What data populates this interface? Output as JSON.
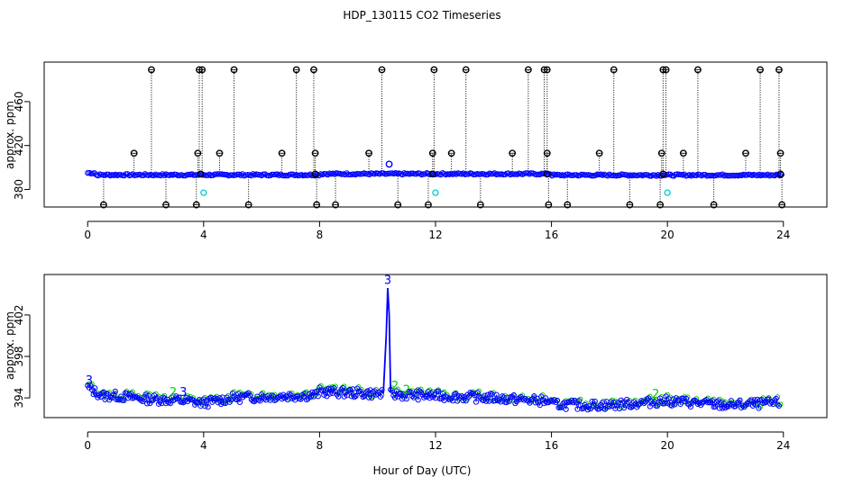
{
  "title": "HDP_130115  CO2 Timeseries",
  "xlabel": "Hour of Day (UTC)",
  "colors": {
    "black": "#000000",
    "blue": "#0000ff",
    "green": "#00cc00",
    "cyan": "#00cccc"
  },
  "chart_data": [
    {
      "type": "scatter",
      "panel": "top",
      "ylabel": "approx. ppm",
      "xlim": [
        -1.5,
        25.5
      ],
      "ylim": [
        364,
        496
      ],
      "xticks": [
        "0",
        "4",
        "8",
        "12",
        "16",
        "20",
        "24"
      ],
      "yticks": [
        "380",
        "420",
        "460"
      ],
      "xtick_values": [
        0,
        4,
        8,
        12,
        16,
        20,
        24
      ],
      "ytick_values": [
        380,
        420,
        460
      ],
      "series": [
        {
          "color": "black",
          "spikes_high": [
            2.2,
            3.85,
            3.95,
            5.05,
            7.2,
            7.8,
            10.15,
            11.95,
            13.05,
            15.2,
            15.75,
            15.85,
            18.15,
            19.85,
            19.95,
            21.05,
            23.2,
            23.85
          ],
          "high_value": 489,
          "spikes_mid": [
            1.6,
            3.8,
            4.55,
            6.7,
            7.85,
            9.7,
            11.9,
            12.55,
            14.65,
            15.85,
            17.65,
            19.8,
            20.55,
            22.7,
            23.9
          ],
          "mid_value": 413,
          "spikes_low": [
            0.55,
            2.7,
            3.75,
            5.55,
            7.9,
            8.55,
            10.7,
            11.75,
            13.55,
            15.9,
            16.55,
            18.7,
            19.75,
            21.6,
            23.95
          ],
          "low_value": 366,
          "near_base": [
            3.9,
            7.85,
            11.9,
            15.85,
            19.85,
            23.9
          ],
          "near_base_value": 394
        },
        {
          "color": "blue",
          "note_points": [
            {
              "x": 10.4,
              "y": 403
            }
          ]
        },
        {
          "color": "cyan",
          "points": [
            {
              "x": 4.0,
              "y": 377
            },
            {
              "x": 12.0,
              "y": 377
            },
            {
              "x": 20.0,
              "y": 377
            }
          ]
        }
      ]
    },
    {
      "type": "line",
      "panel": "bottom",
      "ylabel": "approx. ppm",
      "xlim": [
        -1.5,
        25.5
      ],
      "ylim": [
        392.1,
        405.9
      ],
      "xticks": [
        "0",
        "4",
        "8",
        "12",
        "16",
        "20",
        "24"
      ],
      "yticks": [
        "394",
        "398",
        "402"
      ],
      "xtick_values": [
        0,
        4,
        8,
        12,
        16,
        20,
        24
      ],
      "ytick_values": [
        394,
        398,
        402
      ],
      "baseline": [
        {
          "x": 0.0,
          "y": 395.0
        },
        {
          "x": 0.5,
          "y": 394.2
        },
        {
          "x": 1.0,
          "y": 394.2
        },
        {
          "x": 2.0,
          "y": 393.9
        },
        {
          "x": 3.0,
          "y": 393.8
        },
        {
          "x": 3.75,
          "y": 393.6
        },
        {
          "x": 4.0,
          "y": 393.5
        },
        {
          "x": 5.0,
          "y": 394.0
        },
        {
          "x": 6.0,
          "y": 394.1
        },
        {
          "x": 7.0,
          "y": 394.2
        },
        {
          "x": 7.9,
          "y": 394.3
        },
        {
          "x": 8.0,
          "y": 394.6
        },
        {
          "x": 9.0,
          "y": 394.5
        },
        {
          "x": 10.0,
          "y": 394.4
        },
        {
          "x": 11.0,
          "y": 394.3
        },
        {
          "x": 11.95,
          "y": 394.2
        },
        {
          "x": 12.0,
          "y": 394.2
        },
        {
          "x": 13.0,
          "y": 394.1
        },
        {
          "x": 14.0,
          "y": 394.0
        },
        {
          "x": 15.0,
          "y": 393.8
        },
        {
          "x": 15.9,
          "y": 393.7
        },
        {
          "x": 16.0,
          "y": 393.4
        },
        {
          "x": 17.0,
          "y": 393.3
        },
        {
          "x": 18.0,
          "y": 393.3
        },
        {
          "x": 19.0,
          "y": 393.5
        },
        {
          "x": 19.9,
          "y": 393.7
        },
        {
          "x": 20.0,
          "y": 393.7
        },
        {
          "x": 21.0,
          "y": 393.5
        },
        {
          "x": 22.0,
          "y": 393.3
        },
        {
          "x": 23.0,
          "y": 393.4
        },
        {
          "x": 23.9,
          "y": 393.5
        }
      ],
      "spike": [
        {
          "x": 10.2,
          "y": 394.4
        },
        {
          "x": 10.3,
          "y": 400.0
        },
        {
          "x": 10.35,
          "y": 404.6
        },
        {
          "x": 10.4,
          "y": 402.0
        },
        {
          "x": 10.45,
          "y": 394.5
        }
      ],
      "labels": [
        {
          "text": "3",
          "x": 0.05,
          "y": 395.3,
          "color": "blue"
        },
        {
          "text": "2",
          "x": 2.95,
          "y": 394.2,
          "color": "green"
        },
        {
          "text": "3",
          "x": 3.3,
          "y": 394.2,
          "color": "blue"
        },
        {
          "text": "3",
          "x": 10.35,
          "y": 405.0,
          "color": "blue"
        },
        {
          "text": "2",
          "x": 10.6,
          "y": 394.8,
          "color": "green"
        },
        {
          "text": "2",
          "x": 11.0,
          "y": 394.4,
          "color": "green"
        },
        {
          "text": "2",
          "x": 19.6,
          "y": 394.0,
          "color": "green"
        }
      ]
    }
  ]
}
